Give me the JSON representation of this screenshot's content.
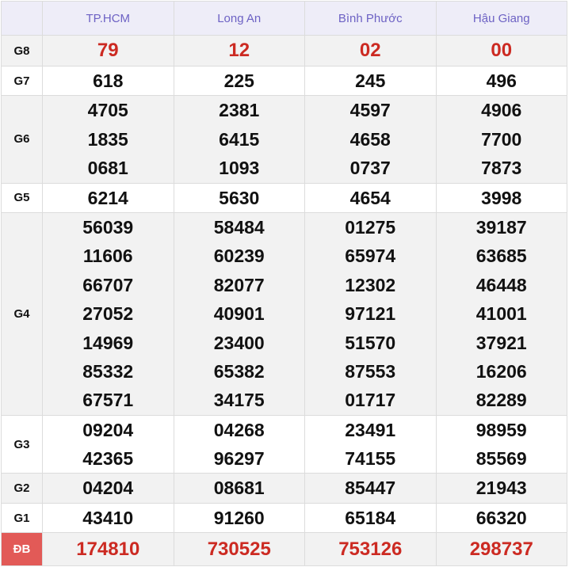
{
  "columns": [
    "TP.HCM",
    "Long An",
    "Bình Phước",
    "Hậu Giang"
  ],
  "colors": {
    "header_text": "#6d62c4",
    "special_text": "#cc2a22",
    "db_label_bg": "#e25a57"
  },
  "rows": [
    {
      "label": "G8",
      "special": true,
      "values": [
        [
          "79"
        ],
        [
          "12"
        ],
        [
          "02"
        ],
        [
          "00"
        ]
      ]
    },
    {
      "label": "G7",
      "values": [
        [
          "618"
        ],
        [
          "225"
        ],
        [
          "245"
        ],
        [
          "496"
        ]
      ]
    },
    {
      "label": "G6",
      "values": [
        [
          "4705",
          "1835",
          "0681"
        ],
        [
          "2381",
          "6415",
          "1093"
        ],
        [
          "4597",
          "4658",
          "0737"
        ],
        [
          "4906",
          "7700",
          "7873"
        ]
      ]
    },
    {
      "label": "G5",
      "values": [
        [
          "6214"
        ],
        [
          "5630"
        ],
        [
          "4654"
        ],
        [
          "3998"
        ]
      ]
    },
    {
      "label": "G4",
      "values": [
        [
          "56039",
          "11606",
          "66707",
          "27052",
          "14969",
          "85332",
          "67571"
        ],
        [
          "58484",
          "60239",
          "82077",
          "40901",
          "23400",
          "65382",
          "34175"
        ],
        [
          "01275",
          "65974",
          "12302",
          "97121",
          "51570",
          "87553",
          "01717"
        ],
        [
          "39187",
          "63685",
          "46448",
          "41001",
          "37921",
          "16206",
          "82289"
        ]
      ]
    },
    {
      "label": "G3",
      "values": [
        [
          "09204",
          "42365"
        ],
        [
          "04268",
          "96297"
        ],
        [
          "23491",
          "74155"
        ],
        [
          "98959",
          "85569"
        ]
      ]
    },
    {
      "label": "G2",
      "values": [
        [
          "04204"
        ],
        [
          "08681"
        ],
        [
          "85447"
        ],
        [
          "21943"
        ]
      ]
    },
    {
      "label": "G1",
      "values": [
        [
          "43410"
        ],
        [
          "91260"
        ],
        [
          "65184"
        ],
        [
          "66320"
        ]
      ]
    },
    {
      "label": "ĐB",
      "special": true,
      "db": true,
      "values": [
        [
          "174810"
        ],
        [
          "730525"
        ],
        [
          "753126"
        ],
        [
          "298737"
        ]
      ]
    }
  ]
}
